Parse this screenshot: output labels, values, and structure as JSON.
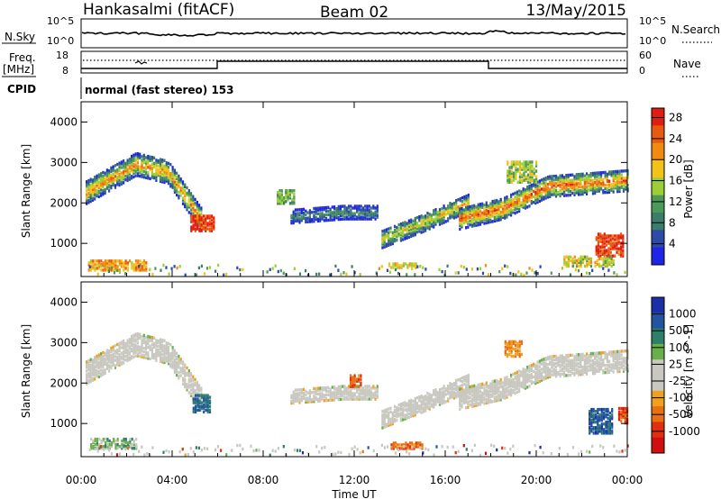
{
  "header": {
    "station": "Hankasalmi (fitACF)",
    "beam": "Beam 02",
    "date": "13/May/2015"
  },
  "noise_panel": {
    "left_label": "N.Sky",
    "right_label": "N.Search",
    "left_ticks": [
      "10^5",
      "10^0"
    ],
    "right_ticks": [
      "10^5",
      "10^0"
    ]
  },
  "freq_panel": {
    "left_label_1": "Freq.",
    "left_label_2": "[MHz]",
    "right_label": "Nave",
    "left_ticks": [
      "18",
      "8"
    ],
    "right_ticks": [
      "60",
      "0"
    ]
  },
  "cpid": {
    "label": "CPID",
    "value": "normal (fast stereo) 153"
  },
  "colors": {
    "power": [
      "#1f25e6",
      "#2c4aa8",
      "#3b7d6a",
      "#4c9a5a",
      "#9ccf33",
      "#f2c21a",
      "#f08a12",
      "#e85a10",
      "#e01d10"
    ],
    "velocity": [
      "#1a2fa8",
      "#2255a0",
      "#2e7f6a",
      "#6ab04a",
      "#c8c8c0",
      "#c8c8c0",
      "#f0a020",
      "#e87010",
      "#e03010",
      "#d01010"
    ]
  },
  "chart_data": [
    {
      "type": "heatmap",
      "quantity": "Power",
      "ylabel": "Slant Range [km]",
      "y_ticks": [
        1000,
        2000,
        3000,
        4000
      ],
      "ylim": [
        180,
        4500
      ],
      "x_ticks": [
        "00:00",
        "04:00",
        "08:00",
        "12:00",
        "16:00",
        "20:00",
        "00:00"
      ],
      "xlim_hours": [
        0,
        24
      ],
      "colorbar": {
        "label": "Power [dB]",
        "ticks": [
          "4",
          "8",
          "12",
          "16",
          "20",
          "24",
          "28"
        ],
        "range": [
          0,
          30
        ]
      },
      "bands": [
        {
          "x": [
            0.2,
            2.4,
            3.8,
            5.3
          ],
          "y": [
            2300,
            3000,
            2800,
            1600
          ],
          "w": 280,
          "level": 0.65
        },
        {
          "x": [
            13.2,
            15.0,
            17.0
          ],
          "y": [
            1150,
            1550,
            2050
          ],
          "w": 220,
          "level": 0.55
        },
        {
          "x": [
            16.6,
            18.5,
            20.5,
            24.0
          ],
          "y": [
            1650,
            1900,
            2450,
            2600
          ],
          "w": 260,
          "level": 0.75
        },
        {
          "x": [
            9.2,
            11.5,
            13.0
          ],
          "y": [
            1700,
            1800,
            1800
          ],
          "w": 160,
          "level": 0.3
        }
      ],
      "patches": [
        {
          "x": 4.8,
          "y": 1550,
          "w": 1.0,
          "h": 400,
          "level": 0.9
        },
        {
          "x": 18.7,
          "y": 2800,
          "w": 1.3,
          "h": 500,
          "level": 0.5
        },
        {
          "x": 22.6,
          "y": 1000,
          "w": 1.2,
          "h": 550,
          "level": 0.9
        },
        {
          "x": 13.5,
          "y": 500,
          "w": 1.2,
          "h": 120,
          "level": 0.6
        },
        {
          "x": 8.6,
          "y": 2200,
          "w": 0.8,
          "h": 350,
          "level": 0.4
        },
        {
          "x": 21.2,
          "y": 600,
          "w": 2.2,
          "h": 250,
          "level": 0.55
        },
        {
          "x": 0.3,
          "y": 500,
          "w": 2.6,
          "h": 250,
          "level": 0.7
        }
      ]
    },
    {
      "type": "heatmap",
      "quantity": "Velocity",
      "ylabel": "Slant Range [km]",
      "y_ticks": [
        1000,
        2000,
        3000,
        4000
      ],
      "ylim": [
        180,
        4500
      ],
      "x_ticks": [
        "00:00",
        "04:00",
        "08:00",
        "12:00",
        "16:00",
        "20:00",
        "00:00"
      ],
      "xlim_hours": [
        0,
        24
      ],
      "xlabel": "Time UT",
      "colorbar": {
        "label": "Velocity [m s^-1]",
        "ticks": [
          "1000",
          "500",
          "100",
          "25",
          "-25",
          "-100",
          "-500",
          "-1000"
        ]
      },
      "patches": [
        {
          "x": 4.9,
          "y": 1550,
          "w": 0.8,
          "h": 450,
          "v": 0.2
        },
        {
          "x": 13.6,
          "y": 500,
          "w": 1.4,
          "h": 160,
          "v": 0.75
        },
        {
          "x": 18.6,
          "y": 2900,
          "w": 0.8,
          "h": 400,
          "v": 0.7
        },
        {
          "x": 22.3,
          "y": 1100,
          "w": 1.0,
          "h": 600,
          "v": 0.15
        },
        {
          "x": 23.6,
          "y": 1250,
          "w": 0.4,
          "h": 400,
          "v": 0.85
        },
        {
          "x": 11.8,
          "y": 2100,
          "w": 0.5,
          "h": 300,
          "v": 0.78
        },
        {
          "x": 0.4,
          "y": 550,
          "w": 2.0,
          "h": 250,
          "v": 0.35
        }
      ]
    }
  ]
}
